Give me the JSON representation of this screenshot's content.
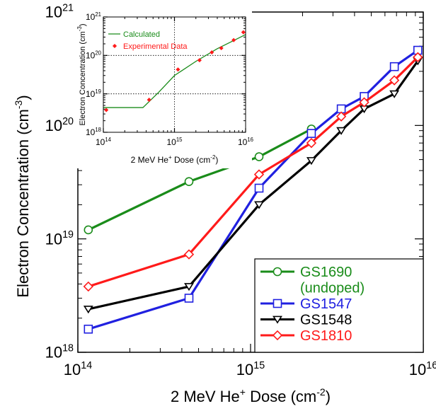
{
  "chart_data": [
    {
      "type": "line",
      "xscale": "log",
      "yscale": "log",
      "xlim": [
        100000000000000.0,
        1e+16
      ],
      "ylim": [
        1e+18,
        1e+21
      ],
      "xlabel": {
        "main": "2 MeV He",
        "sup1": "+",
        "mid": " Dose (cm",
        "sup2": "-2",
        "end": ")"
      },
      "ylabel": {
        "main": "Electron Concentration (cm",
        "sup": "-3",
        "end": ")"
      },
      "xticks": [
        {
          "value": 100000000000000.0,
          "base": "10",
          "exp": "14"
        },
        {
          "value": 1000000000000000.0,
          "base": "10",
          "exp": "15"
        },
        {
          "value": 1e+16,
          "base": "10",
          "exp": "16"
        }
      ],
      "yticks": [
        {
          "value": 1e+18,
          "base": "10",
          "exp": "18"
        },
        {
          "value": 1e+19,
          "base": "10",
          "exp": "19"
        },
        {
          "value": 1e+20,
          "base": "10",
          "exp": "20"
        },
        {
          "value": 1e+21,
          "base": "10",
          "exp": "21"
        }
      ],
      "legend_position": "bottom-right",
      "series": [
        {
          "name": "GS1690",
          "name_line2": "(undoped)",
          "color": "#1a8c1a",
          "marker": "circle",
          "x": [
            115000000000000.0,
            440000000000000.0,
            1120000000000000.0,
            2250000000000000.0
          ],
          "y": [
            1.2e+19,
            3.2e+19,
            5.3e+19,
            9.3e+19
          ]
        },
        {
          "name": "GS1547",
          "color": "#2020e0",
          "marker": "square",
          "x": [
            115000000000000.0,
            440000000000000.0,
            1120000000000000.0,
            2250000000000000.0,
            3350000000000000.0,
            4550000000000000.0,
            6800000000000000.0,
            9300000000000000.0
          ],
          "y": [
            1.6e+18,
            3e+18,
            2.8e+19,
            8.5e+19,
            1.4e+20,
            1.8e+20,
            3.3e+20,
            4.6e+20
          ]
        },
        {
          "name": "GS1548",
          "color": "#000000",
          "marker": "triangle-down",
          "x": [
            115000000000000.0,
            440000000000000.0,
            1120000000000000.0,
            2250000000000000.0,
            3350000000000000.0,
            4550000000000000.0,
            6800000000000000.0,
            9300000000000000.0
          ],
          "y": [
            2.4e+18,
            3.8e+18,
            2e+19,
            4.9e+19,
            9e+19,
            1.4e+20,
            1.9e+20,
            3.7e+20
          ]
        },
        {
          "name": "GS1810",
          "color": "#ff1a1a",
          "marker": "diamond",
          "x": [
            115000000000000.0,
            440000000000000.0,
            1120000000000000.0,
            2250000000000000.0,
            3350000000000000.0,
            4550000000000000.0,
            6800000000000000.0,
            9300000000000000.0
          ],
          "y": [
            3.8e+18,
            7.3e+18,
            3.7e+19,
            7e+19,
            1.2e+20,
            1.6e+20,
            2.5e+20,
            4e+20
          ]
        }
      ]
    },
    {
      "type": "line",
      "xscale": "log",
      "yscale": "log",
      "xlim": [
        100000000000000.0,
        1e+16
      ],
      "ylim": [
        1e+18,
        1e+21
      ],
      "grid": true,
      "xlabel": {
        "main": "2 MeV He",
        "sup1": "+",
        "mid": " Dose (cm",
        "sup2": "-2",
        "end": ")"
      },
      "ylabel": {
        "main": "Electron Concentration (cm",
        "sup": "-3",
        "end": ")"
      },
      "xticks": [
        {
          "value": 100000000000000.0,
          "base": "10",
          "exp": "14"
        },
        {
          "value": 1000000000000000.0,
          "base": "10",
          "exp": "15"
        },
        {
          "value": 1e+16,
          "base": "10",
          "exp": "16"
        }
      ],
      "yticks": [
        {
          "value": 1e+18,
          "base": "10",
          "exp": "18"
        },
        {
          "value": 1e+19,
          "base": "10",
          "exp": "19"
        },
        {
          "value": 1e+20,
          "base": "10",
          "exp": "20"
        },
        {
          "value": 1e+21,
          "base": "10",
          "exp": "21"
        }
      ],
      "legend_position": "top-left",
      "series": [
        {
          "name": "Calculated",
          "color": "#1a8c1a",
          "marker": "none",
          "x": [
            100000000000000.0,
            360000000000000.0,
            600000000000000.0,
            1000000000000000.0,
            2000000000000000.0,
            4000000000000000.0,
            7000000000000000.0,
            1e+16
          ],
          "y": [
            4.4e+18,
            4.4e+18,
            1.1e+19,
            3e+19,
            7e+19,
            1.5e+20,
            2.5e+20,
            3.5e+20
          ]
        },
        {
          "name": "Experimental Data",
          "color": "#ff1a1a",
          "marker": "diamond-filled",
          "x": [
            110000000000000.0,
            440000000000000.0,
            1120000000000000.0,
            2250000000000000.0,
            3350000000000000.0,
            4550000000000000.0,
            6800000000000000.0,
            9300000000000000.0
          ],
          "y": [
            3.8e+18,
            7e+18,
            4.3e+19,
            7.5e+19,
            1.2e+20,
            1.55e+20,
            2.5e+20,
            4e+20
          ]
        }
      ]
    }
  ]
}
